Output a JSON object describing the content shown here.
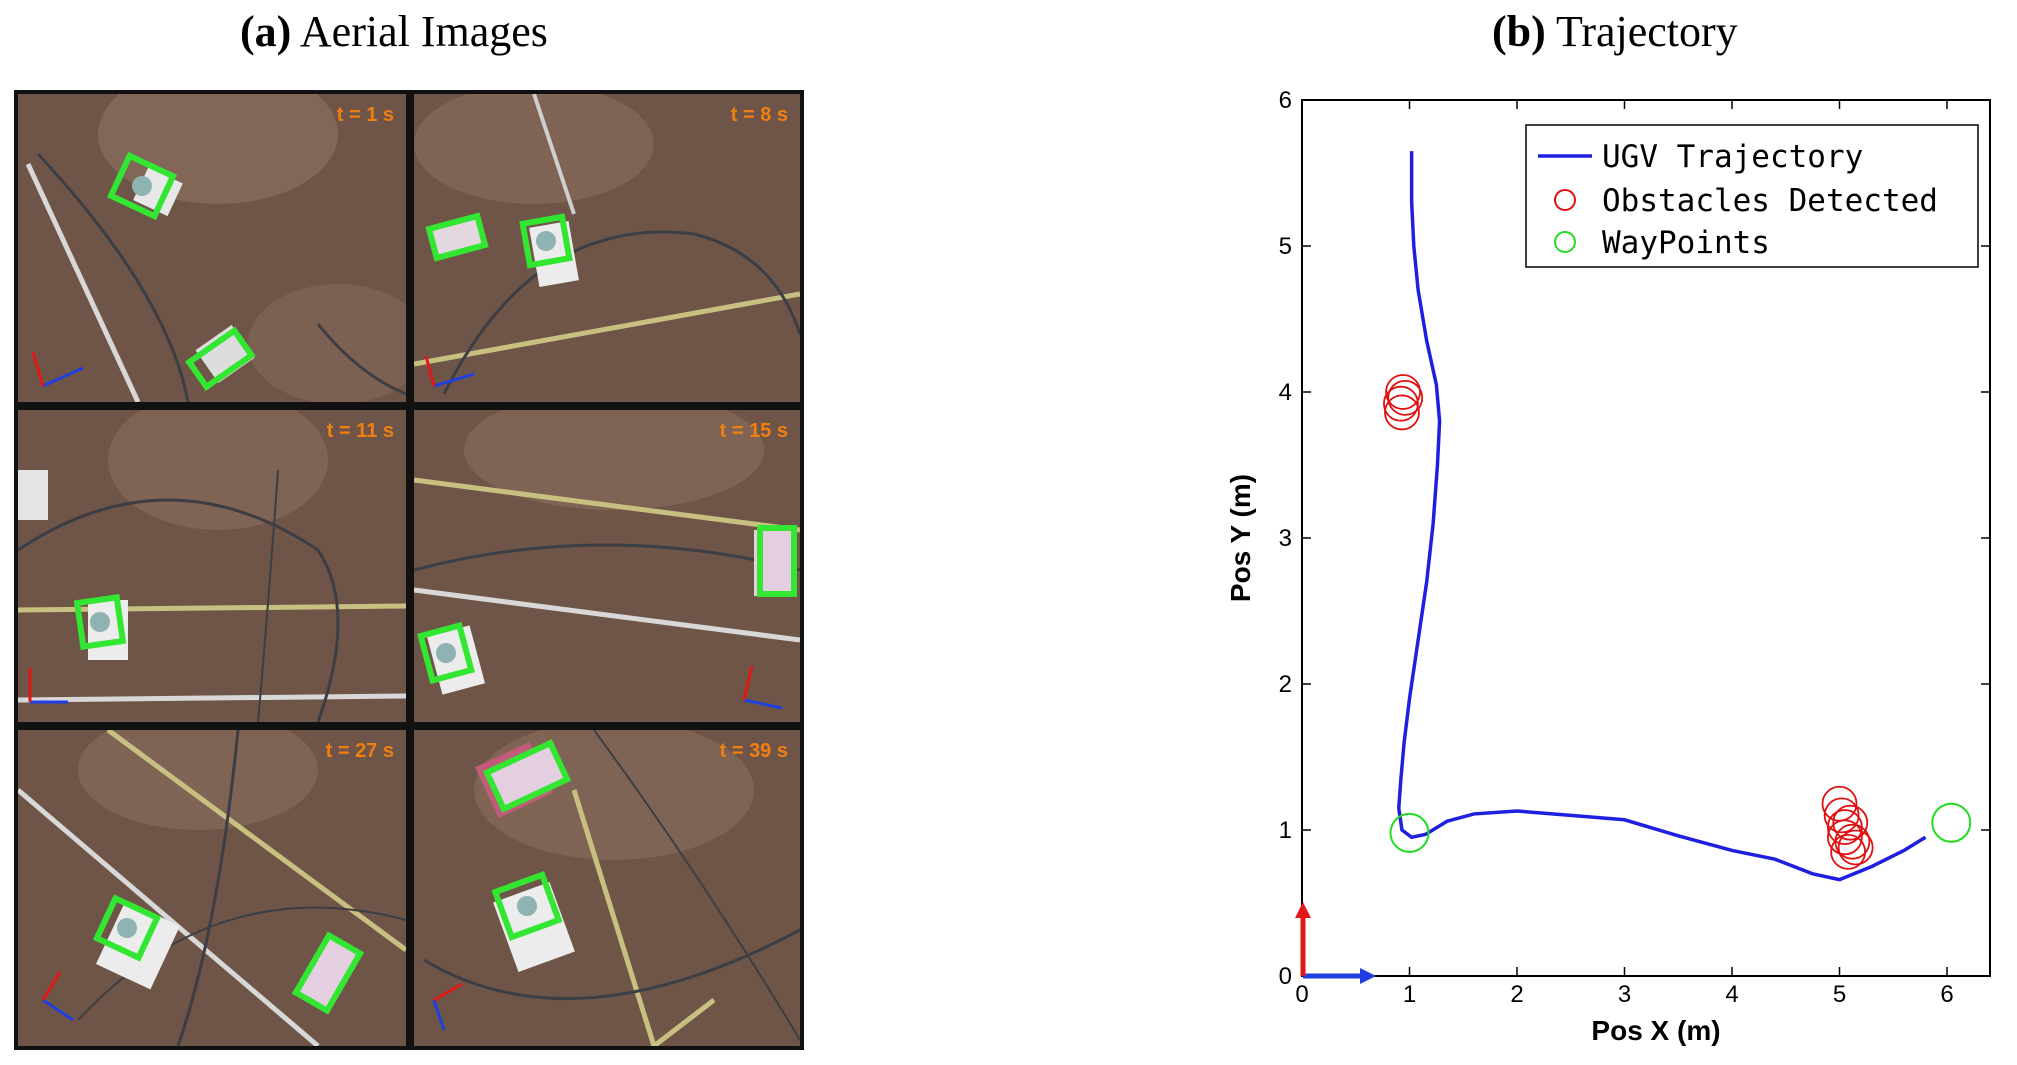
{
  "panel_a": {
    "label": "(a)",
    "title": "Aerial Images",
    "tiles": [
      {
        "time": "t = 1 s"
      },
      {
        "time": "t = 8 s"
      },
      {
        "time": "t = 11 s"
      },
      {
        "time": "t = 15 s"
      },
      {
        "time": "t = 27 s"
      },
      {
        "time": "t = 39 s"
      }
    ]
  },
  "panel_b": {
    "label": "(b)",
    "title": "Trajectory"
  },
  "chart_data": {
    "type": "line",
    "xlabel": "Pos X (m)",
    "ylabel": "Pos Y (m)",
    "xlim": [
      0,
      6.4
    ],
    "ylim": [
      0,
      6
    ],
    "xticks": [
      0,
      1,
      2,
      3,
      4,
      5,
      6
    ],
    "yticks": [
      0,
      1,
      2,
      3,
      4,
      5,
      6
    ],
    "grid": false,
    "legend_position": "top-right",
    "series": [
      {
        "name": "UGV Trajectory",
        "kind": "line",
        "color": "#1f1fe0",
        "x": [
          1.02,
          1.02,
          1.04,
          1.08,
          1.16,
          1.25,
          1.28,
          1.26,
          1.22,
          1.16,
          1.08,
          1.0,
          0.95,
          0.92,
          0.9,
          0.93,
          1.02,
          1.15,
          1.35,
          1.6,
          2.0,
          2.5,
          3.0,
          3.5,
          4.0,
          4.4,
          4.75,
          5.0,
          5.3,
          5.6,
          5.8
        ],
        "y": [
          5.65,
          5.3,
          5.0,
          4.7,
          4.35,
          4.05,
          3.8,
          3.5,
          3.1,
          2.7,
          2.3,
          1.9,
          1.6,
          1.35,
          1.15,
          1.0,
          0.95,
          0.97,
          1.06,
          1.11,
          1.13,
          1.1,
          1.07,
          0.96,
          0.86,
          0.8,
          0.7,
          0.66,
          0.75,
          0.86,
          0.95
        ]
      },
      {
        "name": "Obstacles Detected",
        "kind": "scatter",
        "marker": "open-circle",
        "color": "#e01010",
        "x": [
          0.92,
          0.94,
          0.96,
          0.93,
          5.0,
          5.02,
          5.05,
          5.1,
          5.12,
          5.08,
          5.05,
          5.15
        ],
        "y": [
          3.92,
          4.0,
          3.96,
          3.86,
          1.18,
          1.1,
          1.02,
          1.05,
          0.92,
          0.85,
          0.95,
          0.88
        ]
      },
      {
        "name": "WayPoints",
        "kind": "scatter",
        "marker": "open-circle",
        "color": "#22dd22",
        "x": [
          1.0,
          6.04
        ],
        "y": [
          0.98,
          1.05
        ]
      }
    ]
  }
}
